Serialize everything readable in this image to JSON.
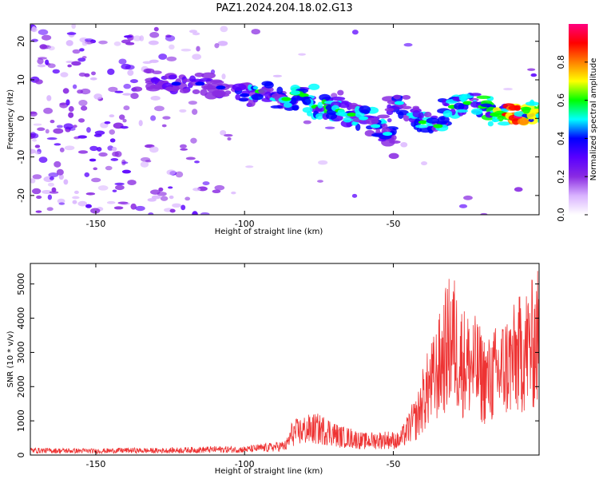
{
  "figure": {
    "title": "PAZ1.2024.204.18.02.G13"
  },
  "chart_data": [
    {
      "type": "heatmap",
      "xlabel": "Height of straight line (km)",
      "ylabel": "Frequency (Hz)",
      "xlim": [
        -172,
        -1
      ],
      "ylim": [
        -25,
        24.5
      ],
      "xticks": [
        -150,
        -100,
        -50
      ],
      "yticks": [
        -20,
        -10,
        0,
        10,
        20
      ],
      "colorbar": {
        "label": "Normalized spectral amplitude",
        "range": [
          0,
          1
        ],
        "ticks": [
          "0.0",
          "0.2",
          "0.4",
          "0.6",
          "0.8"
        ],
        "colors": [
          "#ffffff",
          "#d9b3ff",
          "#8a2be2",
          "#5a00ff",
          "#0000ff",
          "#00ffff",
          "#00ff00",
          "#ffff00",
          "#ff8000",
          "#ff0000",
          "#ff007f"
        ]
      },
      "ridge": [
        {
          "x": -130,
          "y": 10,
          "amp": 0.3
        },
        {
          "x": -123,
          "y": 9,
          "amp": 0.35
        },
        {
          "x": -115,
          "y": 9,
          "amp": 0.4
        },
        {
          "x": -108,
          "y": 8,
          "amp": 0.38
        },
        {
          "x": -100,
          "y": 6,
          "amp": 0.4
        },
        {
          "x": -95,
          "y": 7,
          "amp": 0.55
        },
        {
          "x": -90,
          "y": 5,
          "amp": 0.5
        },
        {
          "x": -86,
          "y": 5,
          "amp": 0.55
        },
        {
          "x": -80,
          "y": 6,
          "amp": 0.6
        },
        {
          "x": -76,
          "y": 3,
          "amp": 0.6
        },
        {
          "x": -72,
          "y": 3,
          "amp": 0.58
        },
        {
          "x": -68,
          "y": 2,
          "amp": 0.55
        },
        {
          "x": -64,
          "y": 1,
          "amp": 0.55
        },
        {
          "x": -60,
          "y": 0,
          "amp": 0.5
        },
        {
          "x": -56,
          "y": -2,
          "amp": 0.5
        },
        {
          "x": -52,
          "y": -4,
          "amp": 0.45
        },
        {
          "x": -48,
          "y": 4,
          "amp": 0.45
        },
        {
          "x": -44,
          "y": 1,
          "amp": 0.5
        },
        {
          "x": -40,
          "y": -1,
          "amp": 0.55
        },
        {
          "x": -35,
          "y": -2,
          "amp": 0.55
        },
        {
          "x": -30,
          "y": 3,
          "amp": 0.55
        },
        {
          "x": -25,
          "y": 4,
          "amp": 0.55
        },
        {
          "x": -20,
          "y": 3,
          "amp": 0.6
        },
        {
          "x": -16,
          "y": 1,
          "amp": 0.6
        },
        {
          "x": -12,
          "y": 1,
          "amp": 0.9
        },
        {
          "x": -8,
          "y": 0.5,
          "amp": 0.95
        },
        {
          "x": -4,
          "y": 1,
          "amp": 0.85
        },
        {
          "x": -2,
          "y": 2,
          "amp": 0.7
        }
      ]
    },
    {
      "type": "line",
      "xlabel": "Height of straight line (km)",
      "ylabel": "SNR (10 * v/v)",
      "xlim": [
        -172,
        -1
      ],
      "ylim": [
        0,
        5600
      ],
      "xticks": [
        -150,
        -100,
        -50
      ],
      "yticks": [
        0,
        1000,
        2000,
        3000,
        4000,
        5000
      ],
      "color": "#ee3333",
      "series": [
        {
          "x": [
            -172,
            -160,
            -150,
            -140,
            -130,
            -120,
            -110,
            -100,
            -95,
            -90,
            -86,
            -84,
            -80,
            -76,
            -72,
            -68,
            -64,
            -60,
            -56,
            -52,
            -50,
            -48,
            -46,
            -44,
            -42,
            -40,
            -38,
            -36,
            -34,
            -32,
            -30,
            -28,
            -26,
            -24,
            -22,
            -20,
            -18,
            -16,
            -14,
            -12,
            -10,
            -8,
            -6,
            -4,
            -2,
            -1
          ],
          "y": [
            150,
            140,
            130,
            150,
            140,
            160,
            180,
            180,
            220,
            260,
            300,
            700,
            800,
            850,
            780,
            600,
            550,
            450,
            480,
            500,
            480,
            450,
            700,
            1000,
            1200,
            1800,
            2200,
            2500,
            3000,
            3500,
            3800,
            3200,
            3000,
            2900,
            2800,
            2500,
            2400,
            2600,
            2700,
            2900,
            3000,
            3200,
            3400,
            3500,
            3700,
            3900
          ]
        }
      ]
    }
  ]
}
